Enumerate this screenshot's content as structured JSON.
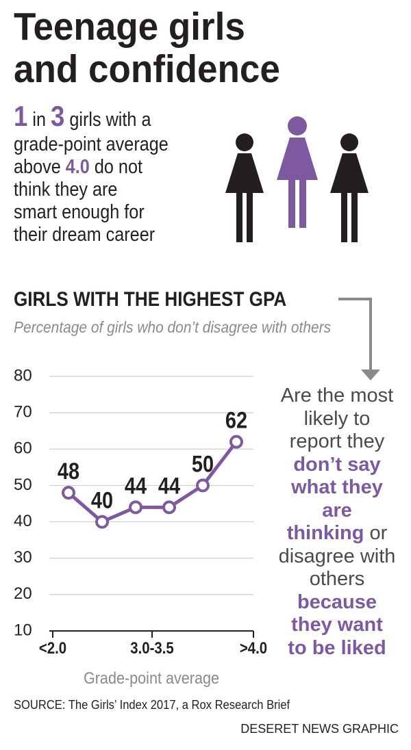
{
  "title": [
    "Teenage girls",
    "and confidence"
  ],
  "intro": [
    [
      "1",
      " in ",
      "3",
      " girls with a"
    ],
    [
      "grade-point average"
    ],
    [
      "above ",
      "4.0",
      " do not"
    ],
    [
      "think they are"
    ],
    [
      "smart enough for"
    ],
    [
      "their dream career"
    ]
  ],
  "chart_data": {
    "type": "line",
    "title": "GIRLS WITH THE HIGHEST GPA",
    "subtitle": "Percentage of girls who don’t disagree with others",
    "categories": [
      null,
      null,
      null,
      null,
      null,
      null
    ],
    "values": [
      48,
      40,
      44,
      44,
      50,
      62
    ],
    "color": "#7d5aa0",
    "x_tick_labels": [
      "<2.0",
      "3.0-3.5",
      ">4.0"
    ],
    "x_label": "Grade-point average",
    "ylim": [
      10,
      80
    ],
    "yticks": [
      10,
      20,
      30,
      40,
      50,
      60,
      70,
      80
    ],
    "grid": true
  },
  "callout": [
    [
      "Are the most"
    ],
    [
      "likely to"
    ],
    [
      "report they"
    ],
    [
      "don’t say"
    ],
    [
      "what they"
    ],
    [
      "are"
    ],
    [
      "thinking",
      " or"
    ],
    [
      "disagree with"
    ],
    [
      "others"
    ],
    [
      "because"
    ],
    [
      "they want"
    ],
    [
      "to be liked"
    ]
  ],
  "source": "SOURCE: The Girls’ Index 2017, a Rox Research Brief",
  "credit": "DESERET NEWS GRAPHIC"
}
